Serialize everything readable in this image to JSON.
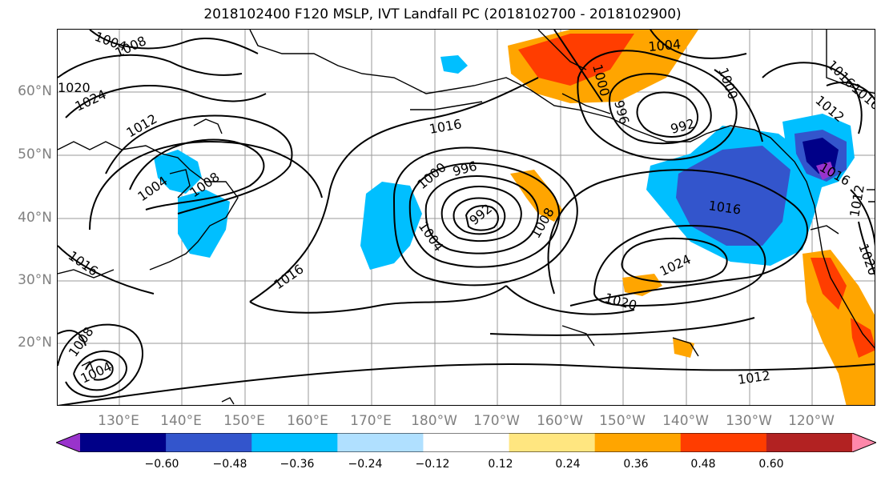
{
  "title": "2018102400 F120 MSLP, IVT Landfall PC (2018102700 - 2018102900)",
  "lat_labels": [
    {
      "text": "60°N",
      "lat": 60
    },
    {
      "text": "50°N",
      "lat": 50
    },
    {
      "text": "40°N",
      "lat": 40
    },
    {
      "text": "30°N",
      "lat": 30
    },
    {
      "text": "20°N",
      "lat": 20
    }
  ],
  "lon_labels": [
    "130°E",
    "140°E",
    "150°E",
    "160°E",
    "170°E",
    "180°W",
    "170°W",
    "160°W",
    "150°W",
    "140°W",
    "130°W",
    "120°W"
  ],
  "isobar_labels": [
    {
      "text": "1004"
    },
    {
      "text": "1008"
    },
    {
      "text": "1024"
    },
    {
      "text": "1020"
    },
    {
      "text": "1012"
    },
    {
      "text": "1004"
    },
    {
      "text": "1008"
    },
    {
      "text": "1016"
    },
    {
      "text": "1016"
    },
    {
      "text": "1000"
    },
    {
      "text": "996"
    },
    {
      "text": "992"
    },
    {
      "text": "1004"
    },
    {
      "text": "1008"
    },
    {
      "text": "1016"
    },
    {
      "text": "1004"
    },
    {
      "text": "1000"
    },
    {
      "text": "996"
    },
    {
      "text": "992"
    },
    {
      "text": "1000"
    },
    {
      "text": "1016"
    },
    {
      "text": "1024"
    },
    {
      "text": "1020"
    },
    {
      "text": "1012"
    },
    {
      "text": "1016"
    },
    {
      "text": "1016"
    },
    {
      "text": "1012"
    },
    {
      "text": "1008"
    },
    {
      "text": "1004"
    },
    {
      "text": "1016"
    },
    {
      "text": "1012"
    },
    {
      "text": "1020"
    }
  ],
  "colorbar": {
    "colors": [
      "#9933cc",
      "#000088",
      "#3355cc",
      "#00bfff",
      "#b0e0ff",
      "#ffffff",
      "#ffe680",
      "#ffa500",
      "#ff3d00",
      "#b22222",
      "#ff88aa"
    ],
    "tick_labels": [
      "−0.60",
      "−0.48",
      "−0.36",
      "−0.24",
      "−0.12",
      "0.12",
      "0.24",
      "0.36",
      "0.48",
      "0.60"
    ]
  }
}
